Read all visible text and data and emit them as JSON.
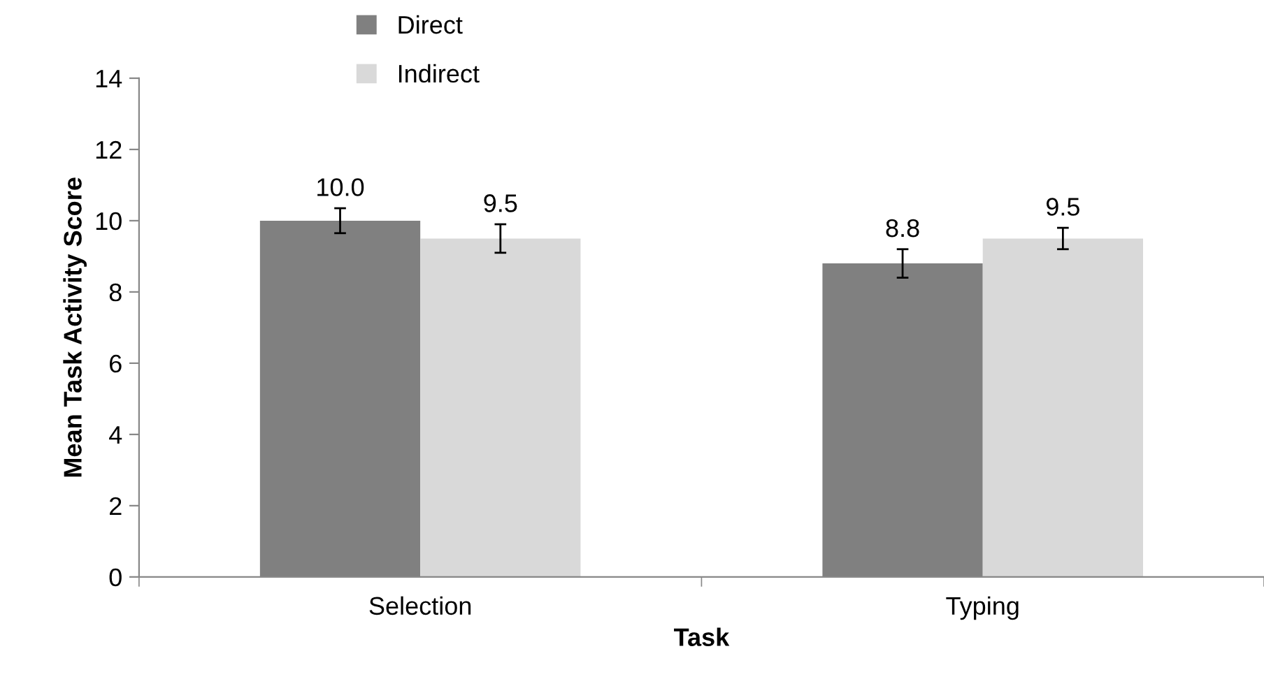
{
  "chart_data": {
    "type": "bar",
    "xlabel": "Task",
    "ylabel": "Mean Task Activity Score",
    "categories": [
      "Selection",
      "Typing"
    ],
    "series": [
      {
        "name": "Direct",
        "color": "#808080",
        "values": [
          10.0,
          8.8
        ],
        "errors": [
          0.35,
          0.4
        ],
        "value_labels": [
          "10.0",
          "8.8"
        ]
      },
      {
        "name": "Indirect",
        "color": "#d9d9d9",
        "values": [
          9.5,
          9.5
        ],
        "errors": [
          0.4,
          0.3
        ],
        "value_labels": [
          "9.5",
          "9.5"
        ]
      }
    ],
    "ylim": [
      0,
      14
    ],
    "yticks": [
      0,
      2,
      4,
      6,
      8,
      10,
      12,
      14
    ],
    "grid": false,
    "legend": "top left"
  }
}
